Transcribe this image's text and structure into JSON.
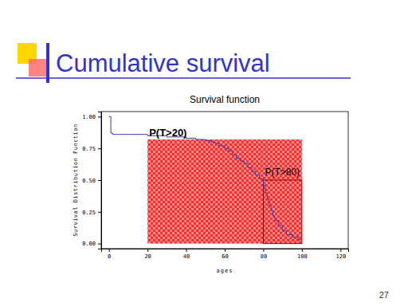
{
  "slide": {
    "title": "Cumulative survival",
    "page_number": "27"
  },
  "chart_data": {
    "type": "line",
    "title": "Survival function",
    "x_label": "ages",
    "y_label": "Survival Distribution Function",
    "xlim": [
      -4,
      124
    ],
    "ylim": [
      -0.04,
      1.04
    ],
    "xticks": [
      0,
      20,
      40,
      60,
      80,
      100,
      120
    ],
    "yticks": [
      {
        "value": 0,
        "label": "0.00"
      },
      {
        "value": 0.25,
        "label": "0.25"
      },
      {
        "value": 0.5,
        "label": "0.50"
      },
      {
        "value": 0.75,
        "label": "0.75"
      },
      {
        "value": 1,
        "label": "1.00"
      }
    ],
    "grid": false,
    "series": [
      {
        "color": "#3a3aa0",
        "line_style": "step",
        "x": [
          0,
          1,
          2,
          5,
          10,
          20,
          30,
          40,
          45,
          50,
          53,
          55,
          57,
          60,
          62,
          64,
          66,
          68,
          70,
          72,
          74,
          76,
          78,
          80,
          81,
          82,
          83,
          84,
          85,
          86,
          88,
          90,
          92,
          95,
          98,
          100
        ],
        "values": [
          1.0,
          0.87,
          0.86,
          0.86,
          0.86,
          0.85,
          0.84,
          0.83,
          0.82,
          0.81,
          0.8,
          0.79,
          0.77,
          0.75,
          0.73,
          0.7,
          0.67,
          0.65,
          0.63,
          0.6,
          0.57,
          0.54,
          0.51,
          0.46,
          0.4,
          0.35,
          0.3,
          0.26,
          0.22,
          0.18,
          0.14,
          0.1,
          0.07,
          0.05,
          0.03,
          0.03
        ]
      }
    ],
    "regions": [
      {
        "label": "P(T>20)",
        "x": [
          20,
          100
        ],
        "y": [
          0,
          0.82
        ]
      },
      {
        "label": "P(T>80)",
        "x": [
          80,
          100
        ],
        "y": [
          0,
          0.5
        ]
      }
    ]
  }
}
